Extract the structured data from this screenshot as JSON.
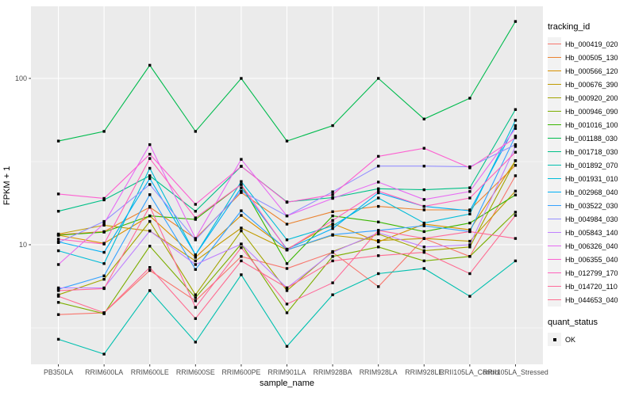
{
  "style": {
    "panel_bg": "#EBEBEB",
    "grid_color": "#FFFFFF",
    "tick_color": "#333333",
    "tick_text_color": "#4D4D4D",
    "title_text_color": "#000000",
    "legend_key_bg": "#F2F2F2",
    "point_color": "#000000"
  },
  "chart_data": {
    "type": "line",
    "xlabel": "sample_name",
    "ylabel": "FPKM + 1",
    "y_scale": "log10",
    "y_major_ticks": [
      10,
      100
    ],
    "y_major_tick_labels": [
      "10",
      "100"
    ],
    "y_minor_ticks": [
      3.162,
      31.62
    ],
    "ylim": [
      1.9,
      265
    ],
    "grid": true,
    "legend_position": "right",
    "legend_title": "tracking_id",
    "point_shape": "square",
    "point_color": "#000000",
    "x_categories": [
      "PB350LA",
      "RRIM600LA",
      "RRIM600LE",
      "RRIM600SE",
      "RRIM600PE",
      "RRIM901LA",
      "RRIM928BA",
      "RRIM928LA",
      "RRIM928LE",
      "RRII105LA_Control",
      "RRII105LA_Stressed"
    ],
    "series": [
      {
        "name": "Hb_000419_020",
        "color": "#F8766D",
        "values": [
          3.8,
          3.9,
          7.0,
          4.6,
          8.5,
          7.2,
          9.0,
          5.6,
          10.9,
          8.5,
          26
        ]
      },
      {
        "name": "Hb_000505_130",
        "color": "#EA8331",
        "values": [
          11.5,
          12.0,
          16.8,
          10.9,
          20.6,
          13.3,
          15.8,
          17.0,
          16.2,
          16.2,
          30
        ]
      },
      {
        "name": "Hb_000566_120",
        "color": "#D89000",
        "values": [
          11.4,
          10.2,
          14.9,
          8.4,
          15.0,
          9.4,
          13.4,
          10.4,
          13.3,
          12.3,
          32
        ]
      },
      {
        "name": "Hb_000676_390",
        "color": "#C09B00",
        "values": [
          11.6,
          13.1,
          12.1,
          8.0,
          12.6,
          9.3,
          11.4,
          10.6,
          10.9,
          10.5,
          21
        ]
      },
      {
        "name": "Hb_000920_200",
        "color": "#A3A500",
        "values": [
          5.0,
          6.2,
          13.8,
          5.0,
          12.1,
          5.3,
          9.1,
          11.6,
          9.2,
          9.7,
          32
        ]
      },
      {
        "name": "Hb_000946_090",
        "color": "#7CAE00",
        "values": [
          4.5,
          3.85,
          9.8,
          4.8,
          10.1,
          3.9,
          8.5,
          9.7,
          8.0,
          8.5,
          15.7
        ]
      },
      {
        "name": "Hb_001016_100",
        "color": "#39B600",
        "values": [
          11.4,
          11.9,
          14.9,
          14.2,
          23.0,
          7.7,
          14.9,
          13.7,
          12.0,
          13.5,
          19.9
        ]
      },
      {
        "name": "Hb_001188_030",
        "color": "#00BB4E",
        "values": [
          42,
          48,
          120,
          48,
          100,
          42,
          52,
          100,
          57,
          76,
          220
        ]
      },
      {
        "name": "Hb_001718_030",
        "color": "#00C087",
        "values": [
          15.9,
          18.6,
          26,
          15.9,
          29.6,
          18.1,
          19.2,
          21.7,
          21.4,
          22,
          65
        ]
      },
      {
        "name": "Hb_001892_070",
        "color": "#00C0AF",
        "values": [
          2.7,
          2.2,
          5.3,
          2.6,
          6.6,
          2.45,
          5.0,
          6.7,
          7.2,
          4.9,
          8.0
        ]
      },
      {
        "name": "Hb_001931_010",
        "color": "#00BCD8",
        "values": [
          9.2,
          7.7,
          28.8,
          8.7,
          24,
          10.7,
          13.0,
          19.1,
          13.5,
          15.3,
          56
        ]
      },
      {
        "name": "Hb_002968_040",
        "color": "#00B0F6",
        "values": [
          10.4,
          9.0,
          25,
          8.7,
          22,
          9.4,
          12.5,
          20.5,
          17.0,
          16.0,
          52
        ]
      },
      {
        "name": "Hb_003522_030",
        "color": "#35A2FF",
        "values": [
          5.4,
          6.5,
          20,
          7.1,
          16,
          9.3,
          11.5,
          12.2,
          13.0,
          12.0,
          45
        ]
      },
      {
        "name": "Hb_004984_030",
        "color": "#9590FF",
        "values": [
          10.3,
          13.8,
          23,
          10.7,
          21,
          14.9,
          20.8,
          29.7,
          29.7,
          29.4,
          40
        ]
      },
      {
        "name": "Hb_005843_140",
        "color": "#BF80FF",
        "values": [
          5.5,
          5.5,
          12.1,
          7.6,
          10.1,
          5.5,
          9.0,
          11.8,
          9.7,
          10.0,
          39
        ]
      },
      {
        "name": "Hb_006326_040",
        "color": "#E76BF3",
        "values": [
          7.6,
          13.4,
          40,
          10.9,
          32.6,
          14.9,
          19.0,
          23.8,
          18.7,
          20.9,
          50
        ]
      },
      {
        "name": "Hb_006355_040",
        "color": "#FD61D1",
        "values": [
          20.2,
          19.0,
          35,
          17.5,
          29.6,
          18.0,
          20.0,
          34,
          38,
          29,
          44
        ]
      },
      {
        "name": "Hb_012799_170",
        "color": "#FF62BC",
        "values": [
          10.8,
          10.1,
          33,
          14.5,
          23,
          9.3,
          14.0,
          21.0,
          17.0,
          19.1,
          36
        ]
      },
      {
        "name": "Hb_014720_110",
        "color": "#FF6A9A",
        "values": [
          5.3,
          5.45,
          17,
          4.2,
          9.6,
          4.4,
          5.9,
          12.2,
          10.9,
          12.0,
          10.9
        ]
      },
      {
        "name": "Hb_044653_040",
        "color": "#FF6C91",
        "values": [
          4.9,
          3.9,
          7.3,
          3.6,
          8.0,
          5.5,
          8.0,
          8.6,
          9.0,
          6.7,
          15
        ]
      }
    ],
    "shape_legend": {
      "title": "quant_status",
      "items": [
        {
          "label": "OK",
          "shape": "square",
          "color": "#000000"
        }
      ]
    }
  }
}
